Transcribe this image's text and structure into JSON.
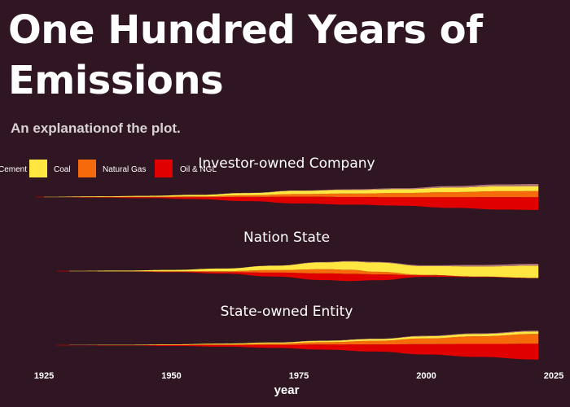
{
  "title": "One Hundred  Years of Emissions",
  "subtitle": "An explanationof the plot.",
  "chart_data": {
    "type": "area",
    "subtype": "streamgraph",
    "xlabel": "year",
    "xlim": [
      1925,
      2025
    ],
    "x_ticks": [
      1925,
      1950,
      1975,
      2000,
      2025
    ],
    "legend": {
      "placement": "top-left",
      "entries": [
        {
          "label": "Cement",
          "color": "#b57a7a"
        },
        {
          "label": "Coal",
          "color": "#ffe640"
        },
        {
          "label": "Natural Gas",
          "color": "#f56b0b"
        },
        {
          "label": "Oil & NGL",
          "color": "#e00000"
        }
      ]
    },
    "facets": [
      {
        "title": "Investor-owned Company",
        "years": [
          1925,
          1935,
          1945,
          1955,
          1965,
          1975,
          1985,
          1995,
          2005,
          2015,
          2022
        ],
        "series": [
          {
            "name": "Oil & NGL",
            "values": [
              0.1,
              0.3,
              0.6,
              1.2,
              2.6,
              4.2,
              4.7,
              5.2,
              6.6,
              7.7,
              7.8
            ]
          },
          {
            "name": "Natural Gas",
            "values": [
              0.05,
              0.1,
              0.2,
              0.5,
              1.0,
              1.6,
              2.1,
              2.6,
              3.1,
              3.6,
              3.8
            ]
          },
          {
            "name": "Coal",
            "values": [
              0.2,
              0.4,
              0.6,
              0.9,
              1.4,
              2.0,
              2.2,
              2.3,
              2.8,
              3.0,
              3.0
            ]
          },
          {
            "name": "Cement",
            "values": [
              0.0,
              0.0,
              0.0,
              0.05,
              0.1,
              0.2,
              0.4,
              0.6,
              0.9,
              1.2,
              1.3
            ]
          }
        ]
      },
      {
        "title": "Nation State",
        "years": [
          1930,
          1940,
          1950,
          1960,
          1970,
          1980,
          1985,
          1990,
          2000,
          2010,
          2022
        ],
        "series": [
          {
            "name": "Oil & NGL",
            "values": [
              0.0,
              0.1,
              0.3,
              0.9,
              2.4,
              4.1,
              4.4,
              3.6,
              0.9,
              0.3,
              0.2
            ]
          },
          {
            "name": "Natural Gas",
            "values": [
              0.0,
              0.05,
              0.2,
              0.6,
              1.6,
              2.6,
              2.5,
              1.6,
              0.3,
              0.1,
              0.05
            ]
          },
          {
            "name": "Coal",
            "values": [
              0.3,
              0.5,
              0.9,
              1.6,
              2.6,
              4.2,
              5.0,
              5.7,
              5.4,
              6.2,
              7.5
            ]
          },
          {
            "name": "Cement",
            "values": [
              0.0,
              0.0,
              0.0,
              0.05,
              0.1,
              0.2,
              0.3,
              0.4,
              0.5,
              0.9,
              1.2
            ]
          }
        ]
      },
      {
        "title": "State-owned Entity",
        "years": [
          1930,
          1940,
          1950,
          1960,
          1970,
          1980,
          1990,
          2000,
          2010,
          2022
        ],
        "series": [
          {
            "name": "Oil & NGL",
            "values": [
              0.1,
              0.2,
              0.5,
              1.0,
              1.8,
              3.2,
              4.4,
              6.4,
              8.0,
              9.7
            ]
          },
          {
            "name": "Natural Gas",
            "values": [
              0.0,
              0.1,
              0.2,
              0.4,
              0.8,
              1.4,
              2.2,
              3.5,
              4.7,
              6.0
            ]
          },
          {
            "name": "Coal",
            "values": [
              0.1,
              0.2,
              0.3,
              0.5,
              0.7,
              0.9,
              1.1,
              1.3,
              1.4,
              1.5
            ]
          },
          {
            "name": "Cement",
            "values": [
              0.0,
              0.0,
              0.0,
              0.0,
              0.05,
              0.1,
              0.2,
              0.3,
              0.4,
              0.5
            ]
          }
        ]
      }
    ]
  }
}
